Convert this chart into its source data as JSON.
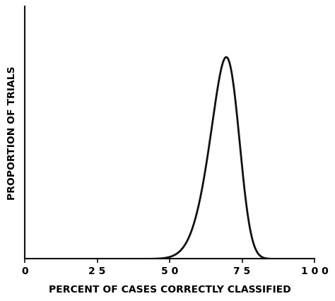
{
  "xlabel": "PERCENT OF CASES CORRECTLY CLASSIFIED",
  "ylabel": "PROPORTION OF TRIALS",
  "xticks": [
    0,
    25,
    50,
    75,
    100
  ],
  "xticklabels": [
    "0",
    "2 5",
    "5 0",
    "7 5",
    "1 0 0"
  ],
  "xlim": [
    0,
    100
  ],
  "ylim": [
    0,
    1.25
  ],
  "curve_mean": 73.5,
  "curve_std": 7.5,
  "curve_color": "#111111",
  "curve_lw": 2.0,
  "background_color": "#ffffff",
  "tick_label_fontsize": 10,
  "xlabel_fontsize": 10,
  "ylabel_fontsize": 10,
  "spine_color": "#111111"
}
